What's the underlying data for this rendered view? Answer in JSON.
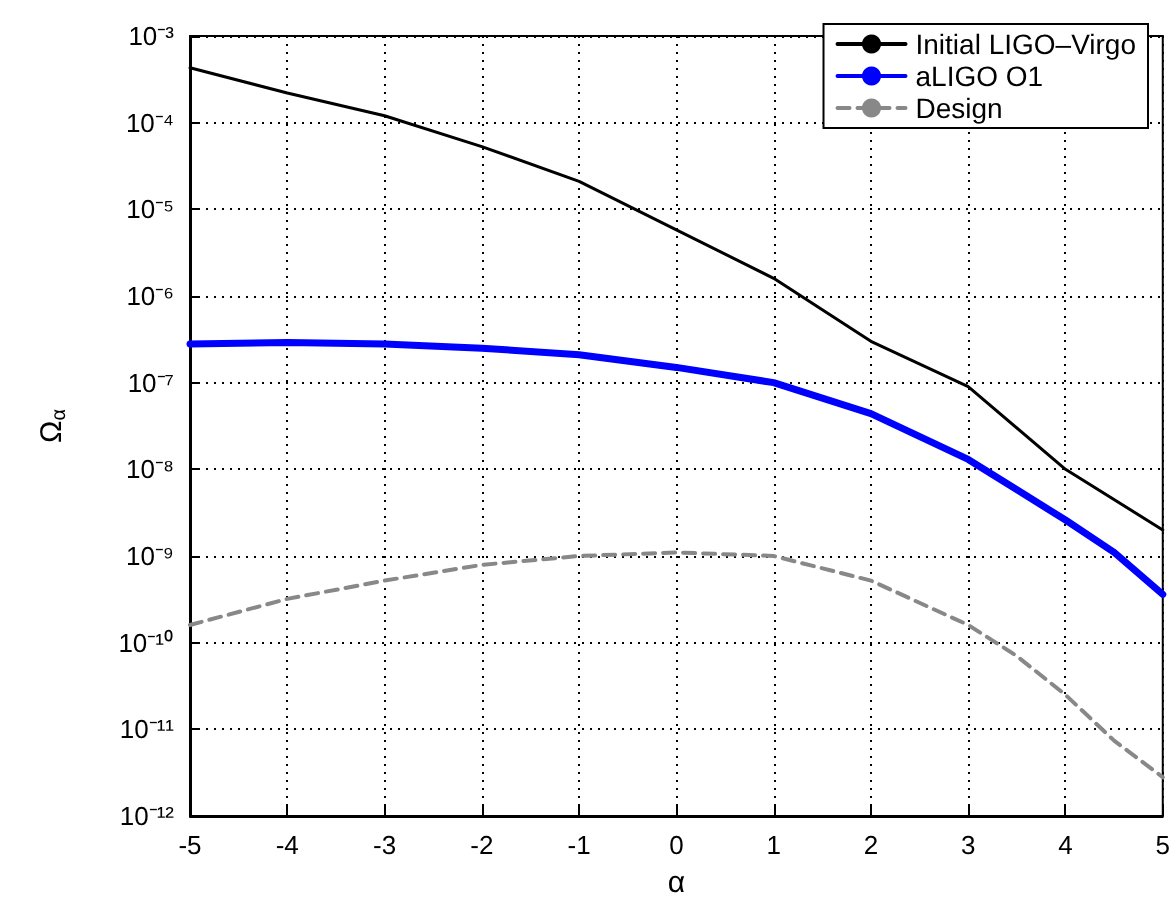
{
  "chart_data": {
    "type": "line",
    "xlabel": "α",
    "ylabel": "Ω$_{α}$",
    "log": "y",
    "grid": true,
    "legend": "top right",
    "marker": "none",
    "xlim": [
      -5,
      5
    ],
    "xticks": [
      -5,
      -4,
      -3,
      -2,
      -1,
      0,
      1,
      2,
      3,
      4,
      5
    ],
    "ylim": [
      1e-12,
      0.001
    ],
    "yticks": [
      {
        "value": 1e-12,
        "label": "10⁻¹²"
      },
      {
        "value": 1e-11,
        "label": "10⁻¹¹"
      },
      {
        "value": 1e-10,
        "label": "10⁻¹⁰"
      },
      {
        "value": 1e-09,
        "label": "10⁻⁹"
      },
      {
        "value": 1e-08,
        "label": "10⁻⁸"
      },
      {
        "value": 1e-07,
        "label": "10⁻⁷"
      },
      {
        "value": 1e-06,
        "label": "10⁻⁶"
      },
      {
        "value": 1e-05,
        "label": "10⁻⁵"
      },
      {
        "value": 0.0001,
        "label": "10⁻⁴"
      },
      {
        "value": 0.001,
        "label": "10⁻³"
      }
    ],
    "series": [
      {
        "name": "Initial LIGO–Virgo",
        "color": "#000000",
        "line_style": "solid",
        "x": [
          -5,
          -4,
          -3,
          -2,
          -1,
          0,
          1,
          2,
          3,
          4,
          5
        ],
        "values": [
          0.00043,
          0.00022,
          0.00012,
          5.3e-05,
          2.1e-05,
          5.8e-06,
          1.6e-06,
          3e-07,
          9e-08,
          1e-08,
          2e-09
        ]
      },
      {
        "name": "aLIGO O1",
        "color": "#0000ff",
        "line_style": "solid",
        "x": [
          -5,
          -4,
          -3,
          -2,
          -1,
          0,
          1,
          2,
          3,
          4,
          4.5,
          5
        ],
        "values": [
          2.8e-07,
          2.9e-07,
          2.8e-07,
          2.5e-07,
          2.1e-07,
          1.5e-07,
          1e-07,
          4.4e-08,
          1.3e-08,
          2.6e-09,
          1.1e-09,
          3.6e-10
        ]
      },
      {
        "name": "Design",
        "color": "#888888",
        "line_style": "dashed",
        "x": [
          -5,
          -4,
          -3,
          -2,
          -1,
          0,
          1,
          2,
          3,
          3.5,
          4,
          4.5,
          5
        ],
        "values": [
          1.6e-10,
          3.2e-10,
          5.2e-10,
          7.9e-10,
          1e-09,
          1.1e-09,
          1e-09,
          5.2e-10,
          1.6e-10,
          7e-11,
          2.5e-11,
          7.4e-12,
          2.8e-12
        ]
      }
    ]
  }
}
